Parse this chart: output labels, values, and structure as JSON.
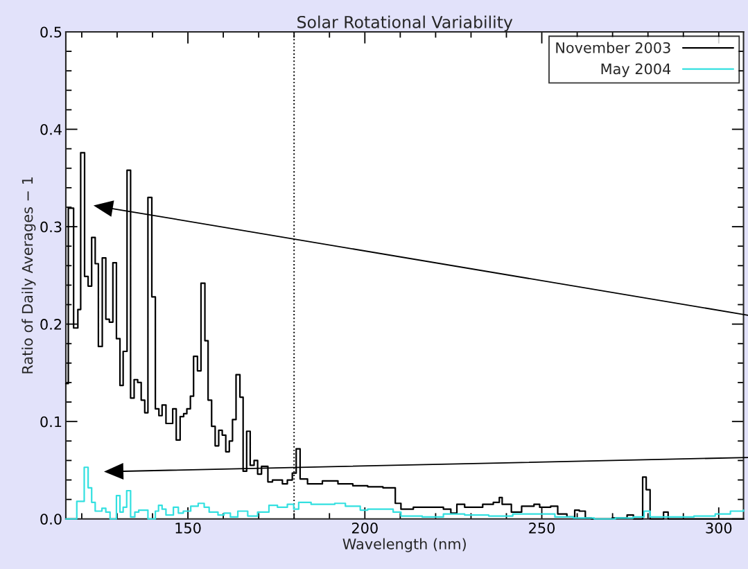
{
  "chart_data": {
    "type": "step",
    "title": "Solar Rotational Variability",
    "xlabel": "Wavelength (nm)",
    "ylabel": "Ratio of Daily Averages − 1",
    "xlim": [
      115.5,
      307
    ],
    "ylim": [
      0,
      0.5
    ],
    "xticks": [
      150,
      200,
      250,
      300
    ],
    "yticks": [
      {
        "value": 0,
        "label": "0.0"
      },
      0.1,
      0.2,
      0.3,
      0.4,
      0.5,
      {
        "value": 0.02,
        "label": null
      },
      {
        "value": 0.04,
        "label": null
      },
      {
        "value": 0.06,
        "label": null
      },
      {
        "value": 0.08,
        "label": null
      },
      {
        "value": 0.12,
        "label": null
      },
      {
        "value": 0.14,
        "label": null
      },
      {
        "value": 0.16,
        "label": null
      },
      {
        "value": 0.18,
        "label": null
      },
      {
        "value": 0.22,
        "label": null
      },
      {
        "value": 0.24,
        "label": null
      },
      {
        "value": 0.26,
        "label": null
      },
      {
        "value": 0.28,
        "label": null
      },
      {
        "value": 0.32,
        "label": null
      },
      {
        "value": 0.34,
        "label": null
      },
      {
        "value": 0.36,
        "label": null
      },
      {
        "value": 0.38,
        "label": null
      },
      {
        "value": 0.42,
        "label": null
      },
      {
        "value": 0.44,
        "label": null
      },
      {
        "value": 0.46,
        "label": null
      },
      {
        "value": 0.48,
        "label": null
      }
    ],
    "legend": "top right",
    "grid": false,
    "ref_lines": [
      {
        "axis": "x",
        "value": 180,
        "color": "#000000",
        "line_style": "dotted"
      }
    ],
    "series": [
      {
        "name": "November 2003",
        "color": "#000000",
        "line_style": "solid",
        "x": [
          115.5,
          116.2,
          117.7,
          118.9,
          119.7,
          120.8,
          121.8,
          122.8,
          123.8,
          124.7,
          125.8,
          126.8,
          127.8,
          128.8,
          129.8,
          130.8,
          131.7,
          132.8,
          133.8,
          134.8,
          135.8,
          136.8,
          137.8,
          138.7,
          139.8,
          140.8,
          141.8,
          142.7,
          143.8,
          145.7,
          146.7,
          147.8,
          148.8,
          149.7,
          150.7,
          151.6,
          152.7,
          153.7,
          154.8,
          155.7,
          156.7,
          157.7,
          158.7,
          159.7,
          160.7,
          161.7,
          162.6,
          163.6,
          164.7,
          165.6,
          166.6,
          167.6,
          168.7,
          169.7,
          170.8,
          172.6,
          173.9,
          176.7,
          178.1,
          179.5,
          180.6,
          181.7,
          183.8,
          188,
          192.4,
          196.6,
          200.8,
          205.1,
          208.6,
          210.2,
          213.7,
          217.9,
          222.2,
          224.3,
          226,
          228.2,
          233.3,
          236.3,
          238,
          238.8,
          241.4,
          244.3,
          247.8,
          249.4,
          252.5,
          254.5,
          257.1,
          259.3,
          260.6,
          262.3,
          264,
          269.9,
          274.1,
          275.9,
          278.5,
          279.5,
          280.6,
          284.4,
          285.7,
          307
        ],
        "values": [
          0.139,
          0.319,
          0.196,
          0.215,
          0.376,
          0.249,
          0.239,
          0.289,
          0.262,
          0.177,
          0.268,
          0.205,
          0.202,
          0.263,
          0.185,
          0.137,
          0.172,
          0.358,
          0.124,
          0.143,
          0.14,
          0.122,
          0.109,
          0.33,
          0.228,
          0.113,
          0.106,
          0.117,
          0.098,
          0.113,
          0.081,
          0.105,
          0.108,
          0.113,
          0.126,
          0.167,
          0.152,
          0.242,
          0.183,
          0.122,
          0.095,
          0.075,
          0.091,
          0.086,
          0.069,
          0.08,
          0.102,
          0.148,
          0.125,
          0.049,
          0.09,
          0.055,
          0.06,
          0.046,
          0.054,
          0.038,
          0.04,
          0.036,
          0.04,
          0.047,
          0.072,
          0.041,
          0.036,
          0.039,
          0.036,
          0.034,
          0.033,
          0.032,
          0.016,
          0.01,
          0.012,
          0.012,
          0.01,
          0.006,
          0.015,
          0.012,
          0.015,
          0.017,
          0.022,
          0.015,
          0.007,
          0.013,
          0.015,
          0.012,
          0.013,
          0.005,
          0.002,
          0.009,
          0.008,
          0.001,
          0.0,
          0.001,
          0.004,
          0.0,
          0.043,
          0.03,
          0.0,
          0.007,
          0.0,
          0.0
        ]
      },
      {
        "name": "May 2004",
        "color": "#33e0e0",
        "line_style": "solid",
        "x": [
          115.5,
          118.6,
          120.7,
          121.8,
          122.8,
          123.8,
          125.7,
          126.8,
          128,
          129.8,
          130.8,
          131.7,
          132.7,
          133.8,
          135,
          136.1,
          138.7,
          140.8,
          141.7,
          142.7,
          143.8,
          145.9,
          147.3,
          148.7,
          150.8,
          152.9,
          154.6,
          156,
          158.5,
          160.2,
          162,
          164.1,
          166.9,
          169.7,
          172.9,
          175.3,
          178.1,
          179.9,
          181.3,
          184.8,
          188,
          191.5,
          194.5,
          198.7,
          200.8,
          204.6,
          208,
          210.2,
          216.2,
          222.2,
          228.2,
          235,
          241.8,
          247.8,
          253.7,
          258.9,
          264.8,
          270.8,
          275.9,
          278.9,
          280.6,
          286.2,
          293,
          299,
          303.3,
          307
        ],
        "values": [
          0.0,
          0.018,
          0.053,
          0.032,
          0.017,
          0.008,
          0.011,
          0.007,
          0.0,
          0.024,
          0.007,
          0.012,
          0.029,
          0.002,
          0.007,
          0.009,
          0.0,
          0.008,
          0.014,
          0.01,
          0.004,
          0.012,
          0.006,
          0.008,
          0.013,
          0.016,
          0.012,
          0.007,
          0.004,
          0.006,
          0.002,
          0.008,
          0.003,
          0.007,
          0.014,
          0.012,
          0.015,
          0.01,
          0.017,
          0.015,
          0.015,
          0.016,
          0.013,
          0.009,
          0.01,
          0.01,
          0.007,
          0.003,
          0.002,
          0.005,
          0.004,
          0.003,
          0.005,
          0.005,
          0.002,
          0.001,
          0.0,
          0.001,
          0.002,
          0.008,
          0.002,
          0.002,
          0.003,
          0.005,
          0.008,
          0.009
        ]
      }
    ]
  }
}
